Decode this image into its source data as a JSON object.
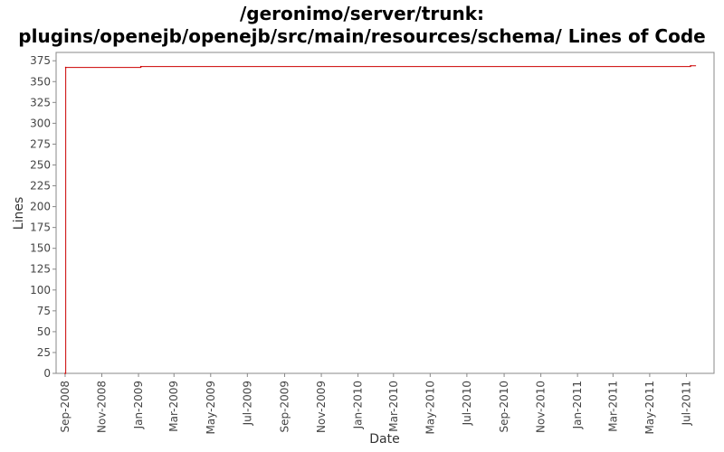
{
  "chart_data": {
    "type": "line",
    "title_line1": "/geronimo/server/trunk:",
    "title_line2": "plugins/openejb/openejb/src/main/resources/schema/ Lines of Code",
    "xlabel": "Date",
    "ylabel": "Lines",
    "ylim": [
      0,
      385
    ],
    "yticks": [
      0,
      25,
      50,
      75,
      100,
      125,
      150,
      175,
      200,
      225,
      250,
      275,
      300,
      325,
      350,
      375
    ],
    "xlim": [
      "2008-08-17",
      "2011-08-16"
    ],
    "xticks": [
      {
        "date": "2008-09-01",
        "label": "Sep-2008"
      },
      {
        "date": "2008-11-01",
        "label": "Nov-2008"
      },
      {
        "date": "2009-01-01",
        "label": "Jan-2009"
      },
      {
        "date": "2009-03-01",
        "label": "Mar-2009"
      },
      {
        "date": "2009-05-01",
        "label": "May-2009"
      },
      {
        "date": "2009-07-01",
        "label": "Jul-2009"
      },
      {
        "date": "2009-09-01",
        "label": "Sep-2009"
      },
      {
        "date": "2009-11-01",
        "label": "Nov-2009"
      },
      {
        "date": "2010-01-01",
        "label": "Jan-2010"
      },
      {
        "date": "2010-03-01",
        "label": "Mar-2010"
      },
      {
        "date": "2010-05-01",
        "label": "May-2010"
      },
      {
        "date": "2010-07-01",
        "label": "Jul-2010"
      },
      {
        "date": "2010-09-01",
        "label": "Sep-2010"
      },
      {
        "date": "2010-11-01",
        "label": "Nov-2010"
      },
      {
        "date": "2011-01-01",
        "label": "Jan-2011"
      },
      {
        "date": "2011-03-01",
        "label": "Mar-2011"
      },
      {
        "date": "2011-05-01",
        "label": "May-2011"
      },
      {
        "date": "2011-07-01",
        "label": "Jul-2011"
      }
    ],
    "series": [
      {
        "color": "#cc0000",
        "step": true,
        "points": [
          {
            "date": "2008-09-01",
            "value": 0
          },
          {
            "date": "2008-09-02",
            "value": 367
          },
          {
            "date": "2009-01-05",
            "value": 368
          },
          {
            "date": "2011-07-08",
            "value": 369
          }
        ]
      }
    ],
    "grid": false,
    "legend": "none"
  }
}
